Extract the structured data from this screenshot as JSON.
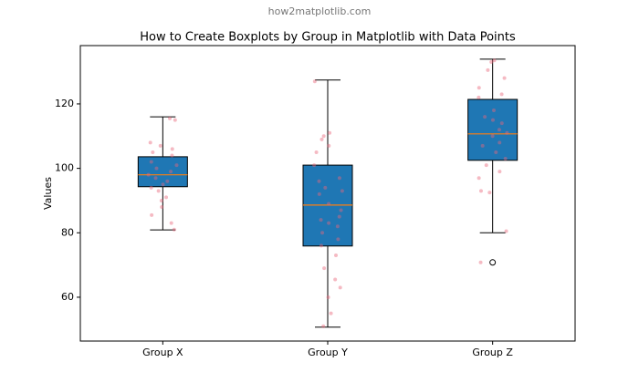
{
  "chart_data": {
    "type": "boxplot",
    "watermark": "how2matplotlib.com",
    "title": "How to Create Boxplots by Group in Matplotlib with Data Points",
    "ylabel": "Values",
    "categories": [
      "Group X",
      "Group Y",
      "Group Z"
    ],
    "boxes": [
      {
        "whislo": 80.9,
        "q1": 94.3,
        "med": 98,
        "q3": 103.6,
        "whishi": 116,
        "fliers": []
      },
      {
        "whislo": 50.7,
        "q1": 75.9,
        "med": 88.6,
        "q3": 101,
        "whishi": 127.4,
        "fliers": []
      },
      {
        "whislo": 80,
        "q1": 102.5,
        "med": 110.7,
        "q3": 121.4,
        "whishi": 133.9,
        "fliers": [
          70.8
        ]
      }
    ],
    "points": [
      [
        115,
        115.5,
        108,
        107,
        106,
        105,
        104,
        102,
        101,
        100,
        99,
        98,
        97,
        96,
        95,
        94,
        93,
        91,
        90,
        88,
        85.5,
        83,
        81
      ],
      [
        127,
        111,
        110,
        109,
        107,
        105,
        101,
        97,
        96,
        94,
        93,
        92,
        89,
        87,
        85,
        84,
        83,
        82,
        80,
        78,
        76,
        73,
        69,
        65.5,
        63,
        60,
        55,
        51
      ],
      [
        133.5,
        133,
        130.5,
        128,
        125,
        123,
        122,
        118,
        116,
        115,
        114,
        112,
        111,
        110,
        108,
        107,
        105,
        103,
        101,
        99,
        97,
        93,
        92.5,
        80.5,
        70.8
      ]
    ],
    "box_color": "#1f77b4",
    "median_color": "#ff7f0e",
    "point_color": "#e8667a",
    "ylim": [
      46.4,
      138.1
    ],
    "yticks": [
      60,
      80,
      100,
      120
    ]
  }
}
